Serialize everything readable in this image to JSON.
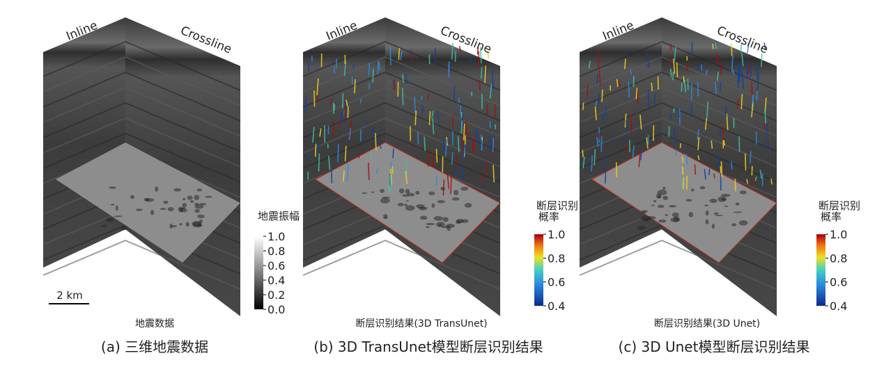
{
  "panels": [
    {
      "inline": "Inline",
      "crossline": "Crossline",
      "colorbar": {
        "title": [
          "地震振幅"
        ],
        "ticks": [
          "1.0",
          "0.8",
          "0.6",
          "0.4",
          "0.2",
          "0.0"
        ]
      },
      "scale_bar": "2 km",
      "subcaption": "地震数据",
      "caption": "(a) 三维地震数据"
    },
    {
      "inline": "Inline",
      "crossline": "Crossline",
      "colorbar": {
        "title": [
          "断层识别",
          "概率"
        ],
        "ticks": [
          "1.0",
          "0.8",
          "0.6",
          "0.4"
        ]
      },
      "subcaption": "断层识别结果(3D TransUnet)",
      "caption": "(b) 3D TransUnet模型断层识别结果"
    },
    {
      "inline": "Inline",
      "crossline": "Crossline",
      "colorbar": {
        "title": [
          "断层识别",
          "概率"
        ],
        "ticks": [
          "1.0",
          "0.8",
          "0.6",
          "0.4"
        ]
      },
      "subcaption": "断层识别结果(3D Unet)",
      "caption": "(c) 3D Unet模型断层识别结果"
    }
  ]
}
